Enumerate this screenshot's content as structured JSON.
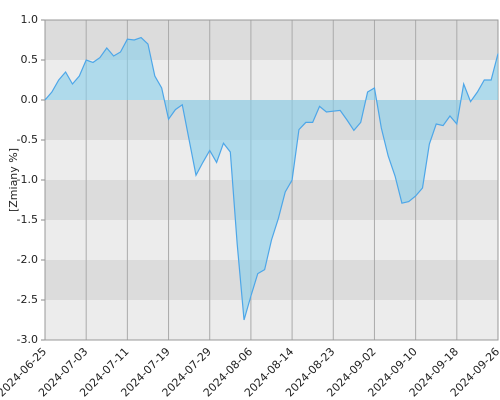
{
  "chart_data": {
    "type": "area",
    "ylabel": "[Zmiany %]",
    "categories": [
      "2024-06-25",
      null,
      null,
      null,
      null,
      null,
      "2024-07-03",
      null,
      null,
      null,
      null,
      null,
      "2024-07-11",
      null,
      null,
      null,
      null,
      null,
      "2024-07-19",
      null,
      null,
      null,
      null,
      null,
      "2024-07-29",
      null,
      null,
      null,
      null,
      null,
      "2024-08-06",
      null,
      null,
      null,
      null,
      null,
      "2024-08-14",
      null,
      null,
      null,
      null,
      null,
      "2024-08-23",
      null,
      null,
      null,
      null,
      null,
      "2024-09-02",
      null,
      null,
      null,
      null,
      null,
      "2024-09-10",
      null,
      null,
      null,
      null,
      null,
      "2024-09-18",
      null,
      null,
      null,
      null,
      null,
      "2024-09-26"
    ],
    "series": [
      {
        "color": "#4da6e8",
        "fill": "rgba(135,206,235,0.6)",
        "values": [
          0.0,
          0.1,
          0.25,
          0.35,
          0.2,
          0.3,
          0.5,
          0.47,
          0.53,
          0.65,
          0.55,
          0.6,
          0.76,
          0.75,
          0.78,
          0.7,
          0.3,
          0.15,
          -0.24,
          -0.12,
          -0.06,
          -0.5,
          -0.94,
          -0.78,
          -0.63,
          -0.78,
          -0.54,
          -0.65,
          -1.8,
          -2.75,
          -2.45,
          -2.17,
          -2.12,
          -1.75,
          -1.48,
          -1.15,
          -1.0,
          -0.37,
          -0.28,
          -0.28,
          -0.08,
          -0.15,
          -0.14,
          -0.13,
          -0.25,
          -0.38,
          -0.28,
          0.1,
          0.15,
          -0.35,
          -0.7,
          -0.95,
          -1.29,
          -1.27,
          -1.2,
          -1.1,
          -0.55,
          -0.3,
          -0.32,
          -0.2,
          -0.3,
          0.2,
          -0.02,
          0.1,
          0.25,
          0.25,
          0.58
        ]
      }
    ],
    "ylim": [
      -3,
      1
    ],
    "yticks": [
      {
        "value": -3,
        "label": "-3.0"
      },
      -2.5,
      {
        "value": -2,
        "label": "-2.0"
      },
      -1.5,
      {
        "value": -1,
        "label": "-1.0"
      },
      -0.5,
      {
        "value": 0,
        "label": "0.0"
      },
      0.5,
      {
        "value": 1,
        "label": "1.0"
      }
    ],
    "bands": [
      "#dcdcdc",
      "#ececec"
    ],
    "grid": true
  }
}
